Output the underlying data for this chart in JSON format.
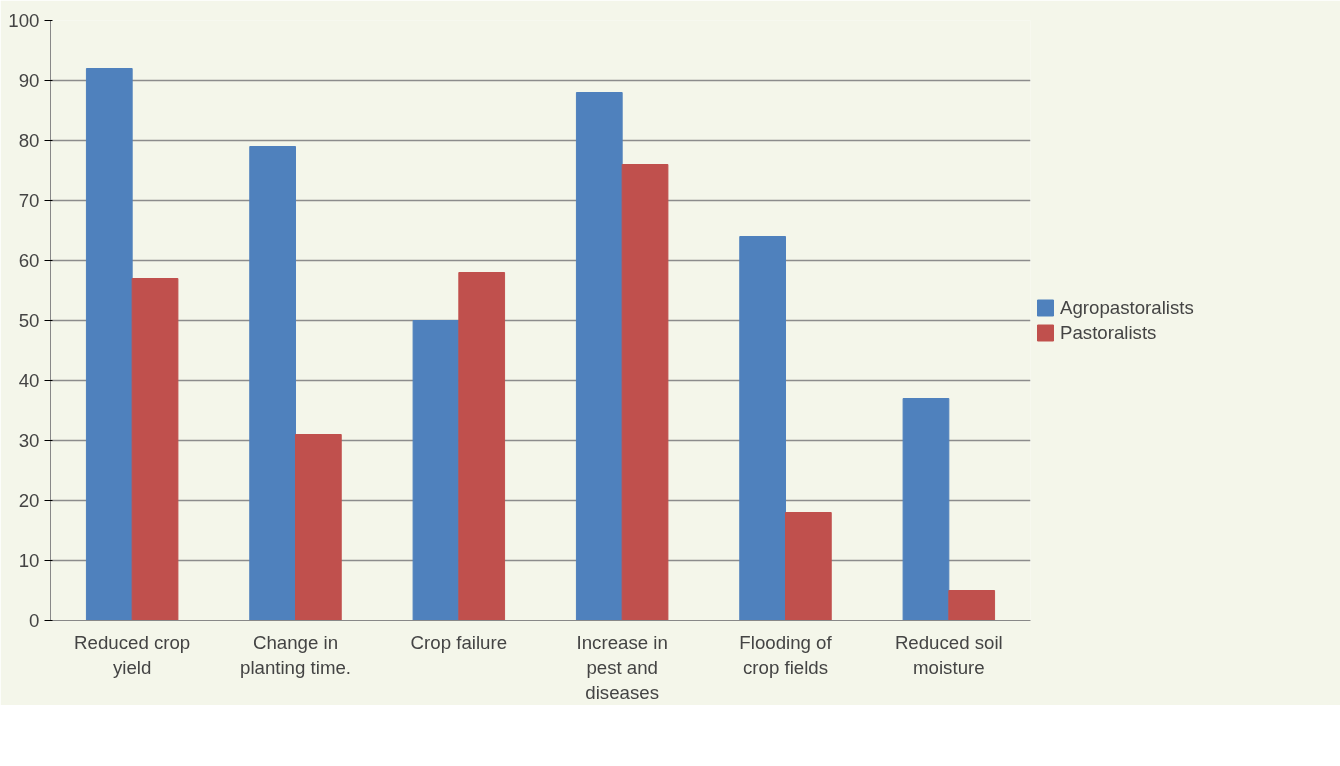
{
  "chart_data": {
    "type": "bar",
    "categories": [
      "Reduced crop yield",
      "Change in planting time.",
      "Crop failure",
      "Increase in pest and diseases",
      "Flooding of crop fields",
      "Reduced soil moisture"
    ],
    "series": [
      {
        "name": "Agropastoralists",
        "color": "#4f81bd",
        "values": [
          92,
          79,
          50,
          88,
          64,
          37
        ]
      },
      {
        "name": "Pastoralists",
        "color": "#c0504d",
        "values": [
          57,
          31,
          58,
          76,
          18,
          5
        ]
      }
    ],
    "ylim": [
      0,
      100
    ],
    "yticks": [
      0,
      10,
      20,
      30,
      40,
      50,
      60,
      70,
      80,
      90,
      100
    ],
    "grid": "y",
    "legend": "right"
  }
}
